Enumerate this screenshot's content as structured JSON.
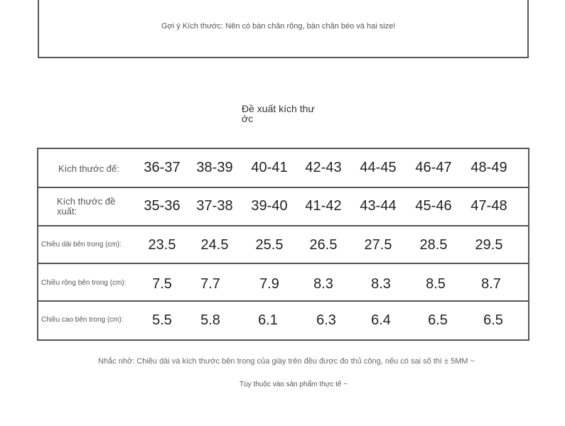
{
  "tip": {
    "text": "Gợi ý Kích thước: Nên có bàn chân rộng, bàn chân béo và hai size!"
  },
  "section_title": "Đề xuất kích thước",
  "table": {
    "rows": [
      {
        "label": "Kích thước đế:",
        "values": [
          "36-37",
          "38-39",
          "40-41",
          "42-43",
          "44-45",
          "46-47",
          "48-49"
        ]
      },
      {
        "label": "Kích thước đề xuất:",
        "values": [
          "35-36",
          "37-38",
          "39-40",
          "41-42",
          "43-44",
          "45-46",
          "47-48"
        ]
      },
      {
        "label": "Chiều dài bên trong (cm):",
        "values": [
          "23.5",
          "24.5",
          "25.5",
          "26.5",
          "27.5",
          "28.5",
          "29.5"
        ]
      },
      {
        "label": "Chiều rộng bên trong (cm):",
        "values": [
          "7.5",
          "7.7",
          "7.9",
          "8.3",
          "8.3",
          "8.5",
          "8.7"
        ]
      },
      {
        "label": "Chiều cao bên trong (cm):",
        "values": [
          "5.5",
          "5.8",
          "6.1",
          "6.3",
          "6.4",
          "6.5",
          "6.5"
        ]
      }
    ]
  },
  "notes": {
    "reminder": "Nhắc nhở: Chiều dài và kích thước bên trong của giày trên đều được đo thủ công, nếu có sai số thì ± 5MM ~",
    "depends": "Tùy thuộc vào sản phẩm thực tế ~"
  }
}
